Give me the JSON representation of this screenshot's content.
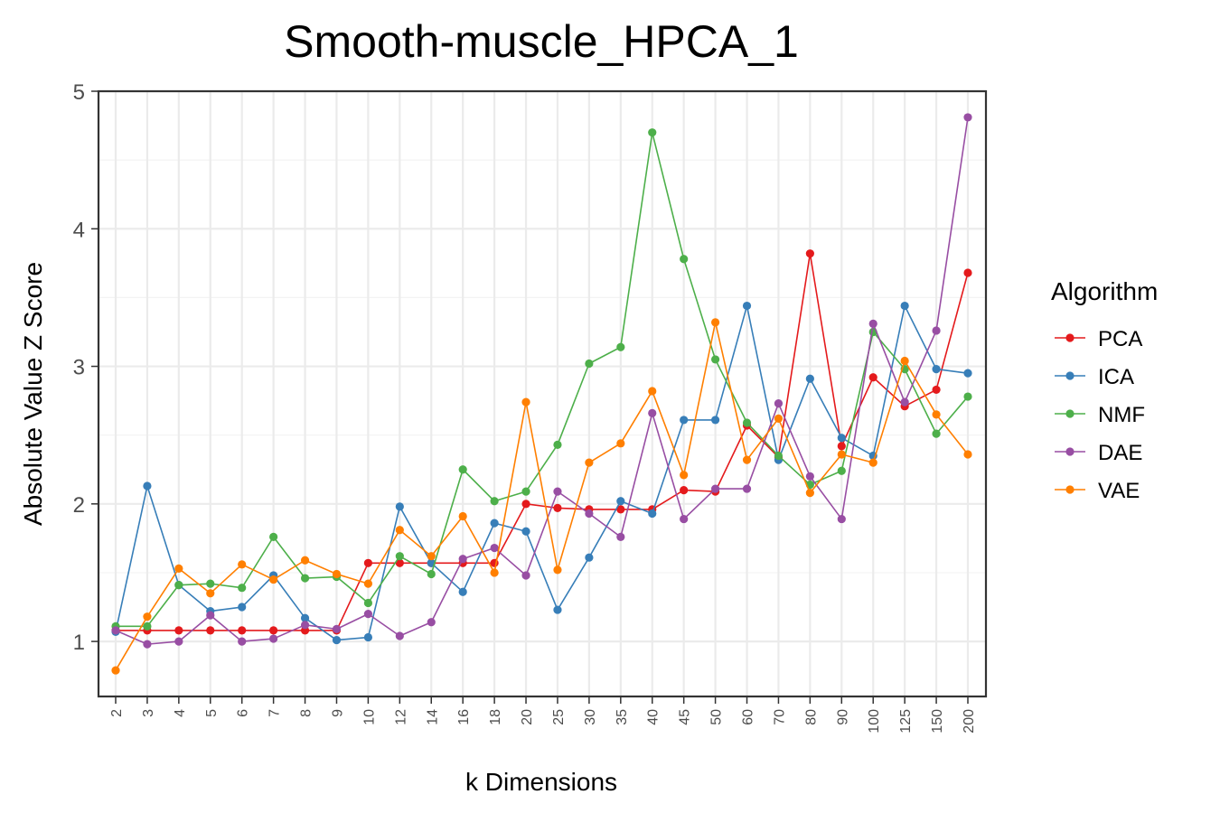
{
  "chart_data": {
    "type": "line",
    "title": "Smooth-muscle_HPCA_1",
    "xlabel": "k Dimensions",
    "ylabel": "Absolute Value Z Score",
    "categories": [
      "2",
      "3",
      "4",
      "5",
      "6",
      "7",
      "8",
      "9",
      "10",
      "12",
      "14",
      "16",
      "18",
      "20",
      "25",
      "30",
      "35",
      "40",
      "45",
      "50",
      "60",
      "70",
      "80",
      "90",
      "100",
      "125",
      "150",
      "200"
    ],
    "ylim": [
      0.6,
      5.0
    ],
    "yticks": [
      1,
      2,
      3,
      4,
      5
    ],
    "grid": true,
    "legend_title": "Algorithm",
    "legend_position": "right",
    "series": [
      {
        "name": "PCA",
        "color": "#e41a1c",
        "values": [
          1.08,
          1.08,
          1.08,
          1.08,
          1.08,
          1.08,
          1.08,
          1.08,
          1.57,
          1.57,
          1.57,
          1.57,
          1.57,
          2.0,
          1.97,
          1.96,
          1.96,
          1.96,
          2.1,
          2.09,
          2.57,
          2.34,
          3.82,
          2.42,
          2.92,
          2.71,
          2.83,
          3.68
        ]
      },
      {
        "name": "ICA",
        "color": "#377eb8",
        "values": [
          1.07,
          2.13,
          1.41,
          1.22,
          1.25,
          1.48,
          1.17,
          1.01,
          1.03,
          1.98,
          1.57,
          1.36,
          1.86,
          1.8,
          1.23,
          1.61,
          2.02,
          1.93,
          2.61,
          2.61,
          3.44,
          2.32,
          2.91,
          2.48,
          2.35,
          3.44,
          2.98,
          2.95
        ]
      },
      {
        "name": "NMF",
        "color": "#4daf4a",
        "values": [
          1.11,
          1.11,
          1.41,
          1.42,
          1.39,
          1.76,
          1.46,
          1.47,
          1.28,
          1.62,
          1.49,
          2.25,
          2.02,
          2.09,
          2.43,
          3.02,
          3.14,
          4.7,
          3.78,
          3.05,
          2.59,
          2.35,
          2.14,
          2.24,
          3.25,
          2.98,
          2.51,
          2.78
        ]
      },
      {
        "name": "DAE",
        "color": "#984ea3",
        "values": [
          1.08,
          0.98,
          1.0,
          1.19,
          1.0,
          1.02,
          1.12,
          1.09,
          1.2,
          1.04,
          1.14,
          1.6,
          1.68,
          1.48,
          2.09,
          1.93,
          1.76,
          2.66,
          1.89,
          2.11,
          2.11,
          2.73,
          2.2,
          1.89,
          3.31,
          2.74,
          3.26,
          4.81
        ]
      },
      {
        "name": "VAE",
        "color": "#ff7f00",
        "values": [
          0.79,
          1.18,
          1.53,
          1.35,
          1.56,
          1.45,
          1.59,
          1.49,
          1.42,
          1.81,
          1.62,
          1.91,
          1.5,
          2.74,
          1.52,
          2.3,
          2.44,
          2.82,
          2.21,
          3.32,
          2.32,
          2.62,
          2.08,
          2.36,
          2.3,
          3.04,
          2.65,
          2.36
        ]
      }
    ]
  }
}
